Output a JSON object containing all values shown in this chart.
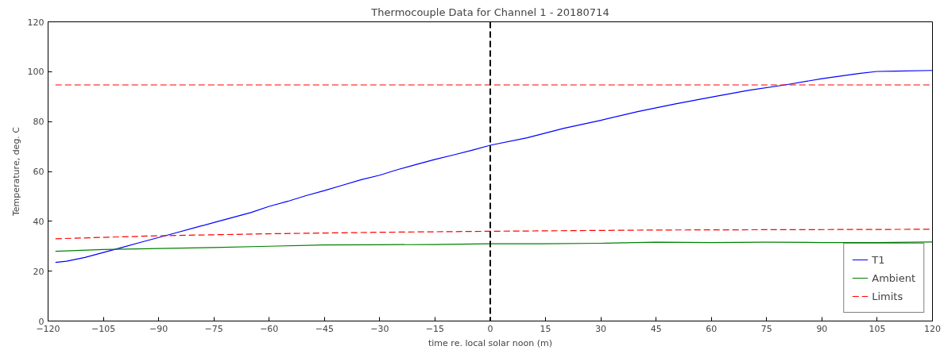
{
  "chart_data": {
    "type": "line",
    "title": "Thermocouple Data for Channel 1 - 20180714",
    "xlabel": "time re. local solar noon (m)",
    "ylabel": "Temperature, deg. C",
    "xlim": [
      -120,
      120
    ],
    "xticks": [
      -120,
      -105,
      -90,
      -75,
      -60,
      -45,
      -30,
      -15,
      0,
      15,
      30,
      45,
      60,
      75,
      90,
      105,
      120
    ],
    "ylim": [
      0,
      120
    ],
    "yticks": [
      0,
      20,
      40,
      60,
      80,
      100,
      120
    ],
    "grid": false,
    "legend": "bottom right",
    "series": [
      {
        "name": "T1",
        "color": "#0000ff",
        "line_style": "solid",
        "x": [
          -118,
          -115,
          -110,
          -105,
          -100,
          -95,
          -90,
          -85,
          -80,
          -75,
          -70,
          -65,
          -60,
          -55,
          -50,
          -45,
          -40,
          -35,
          -30,
          -25,
          -20,
          -15,
          -10,
          -5,
          0,
          10,
          20,
          30,
          40,
          50,
          60,
          70,
          80,
          90,
          100,
          105,
          110,
          120
        ],
        "values": [
          23.5,
          24,
          25.5,
          27.5,
          29.5,
          31.5,
          33.5,
          35.5,
          37.5,
          39.5,
          41.5,
          43.5,
          46,
          48,
          50.3,
          52.3,
          54.5,
          56.7,
          58.5,
          60.8,
          62.8,
          64.8,
          66.6,
          68.5,
          70.5,
          73.5,
          77.3,
          80.5,
          84,
          87,
          89.8,
          92.5,
          94.7,
          97.2,
          99.3,
          100.1,
          100.2,
          100.5
        ]
      },
      {
        "name": "Ambient",
        "color": "#008000",
        "line_style": "solid",
        "x": [
          -118,
          -105,
          -90,
          -75,
          -60,
          -45,
          -30,
          -15,
          0,
          15,
          30,
          45,
          60,
          75,
          90,
          105,
          120
        ],
        "values": [
          28,
          28.7,
          29.1,
          29.5,
          30,
          30.5,
          30.6,
          30.7,
          31,
          31,
          31.2,
          31.6,
          31.5,
          31.6,
          31.5,
          31.5,
          31.7
        ]
      },
      {
        "name": "Limits",
        "color": "#ff0000",
        "line_style": "dashed",
        "x": [
          -118,
          -90,
          -60,
          -30,
          0,
          45,
          120
        ],
        "values": [
          33,
          34.2,
          35,
          35.6,
          36,
          36.5,
          36.8
        ]
      },
      {
        "color": "#ff0000",
        "line_style": "dashed",
        "x": [
          -118,
          120
        ],
        "values": [
          94.7,
          94.7
        ]
      }
    ],
    "ref_lines": [
      {
        "axis": "x",
        "value": 0,
        "color": "#000000",
        "line_style": "dashed"
      }
    ]
  }
}
